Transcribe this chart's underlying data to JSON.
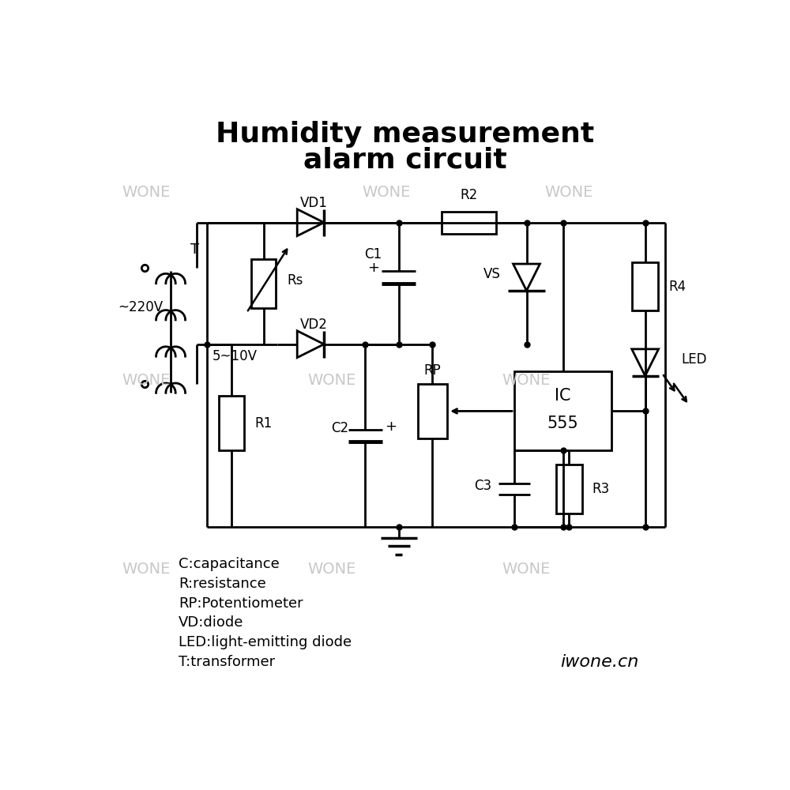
{
  "title_line1": "Humidity measurement",
  "title_line2": "alarm circuit",
  "background_color": "#ffffff",
  "line_color": "#000000",
  "watermark_color": "#c8c8c8",
  "legend_lines": [
    "C:capacitance",
    "R:resistance",
    "RP:Potentiometer",
    "VD:diode",
    "LED:light-emitting diode",
    "T:transformer"
  ],
  "brand": "iwone.cn"
}
